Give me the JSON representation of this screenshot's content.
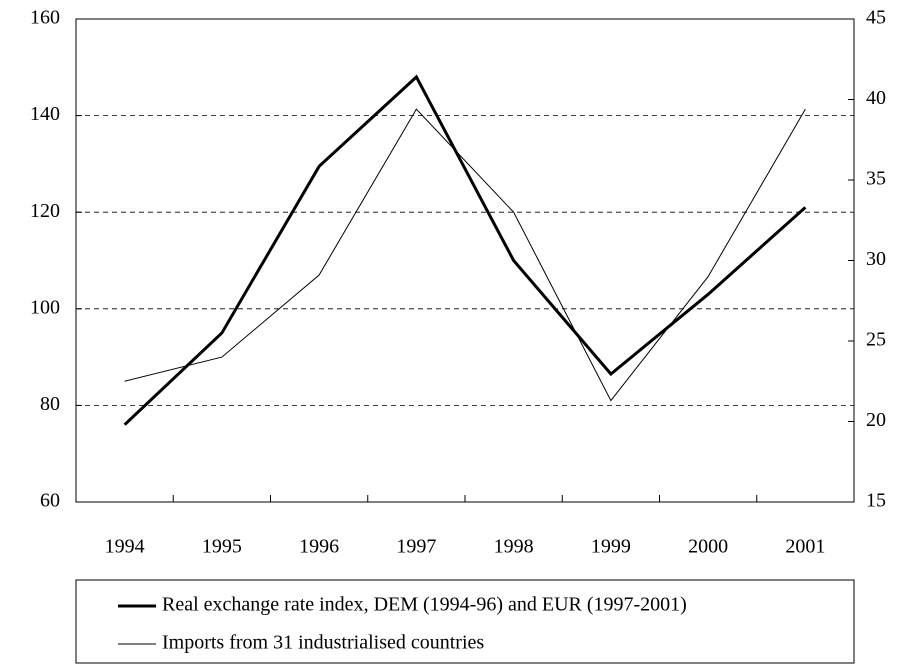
{
  "chart_data": {
    "type": "line",
    "categories": [
      "1994",
      "1995",
      "1996",
      "1997",
      "1998",
      "1999",
      "2000",
      "2001"
    ],
    "series": [
      {
        "name": "Real exchange rate index, DEM (1994-96) and EUR (1997-2001)",
        "color": "#000000",
        "width": 3,
        "values": [
          76,
          95,
          129.5,
          148,
          110,
          86.5,
          103,
          121
        ]
      },
      {
        "name": "Imports from 31 industrialised countries",
        "color": "#000000",
        "width": 1,
        "axis": "y2",
        "values": [
          22.5,
          24,
          29.1,
          39.4,
          33,
          21.3,
          29,
          39.4
        ]
      }
    ],
    "ylim": [
      60,
      160
    ],
    "yticks": [
      60,
      80,
      100,
      120,
      140,
      160
    ],
    "y2lim": [
      15,
      45
    ],
    "y2ticks": [
      15,
      20,
      25,
      30,
      35,
      40,
      45
    ],
    "grid": true,
    "legend": "bottom"
  }
}
